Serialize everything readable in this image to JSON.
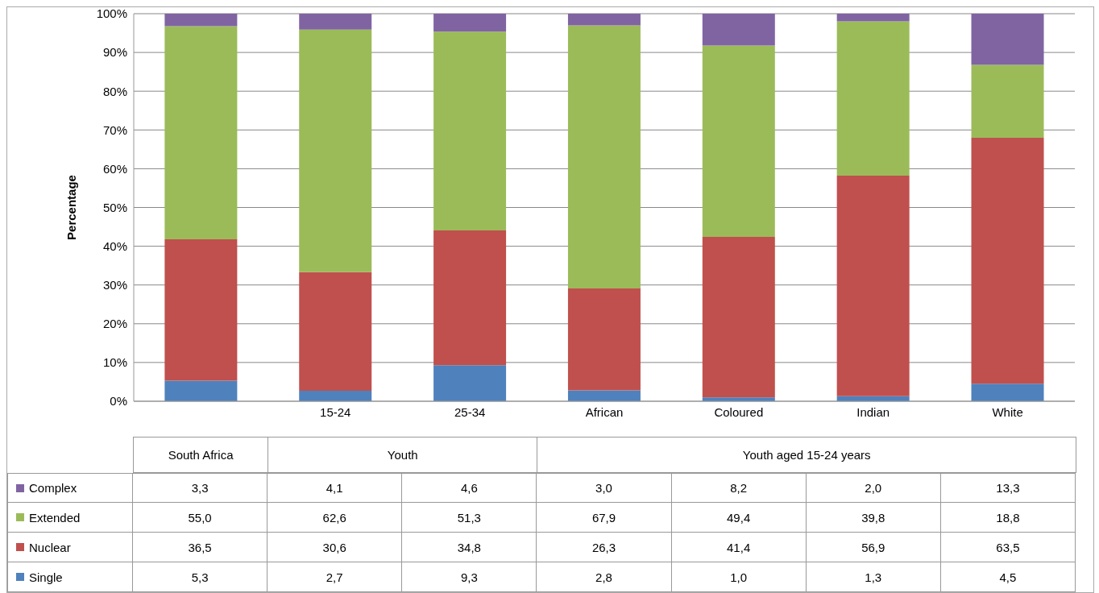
{
  "chart_data": {
    "type": "bar",
    "stacked": true,
    "ylabel": "Percentage",
    "categories": [
      null,
      "15-24",
      "25-34",
      "African",
      "Coloured",
      "Indian",
      "White"
    ],
    "annotations": [
      "South Africa",
      "Youth",
      "Youth aged 15-24 years"
    ],
    "ylim": [
      0,
      100
    ],
    "yticks": [
      {
        "value": 0,
        "label": "0%"
      },
      {
        "value": 10,
        "label": "10%"
      },
      {
        "value": 20,
        "label": "20%"
      },
      {
        "value": 30,
        "label": "30%"
      },
      {
        "value": 40,
        "label": "40%"
      },
      {
        "value": 50,
        "label": "50%"
      },
      {
        "value": 60,
        "label": "60%"
      },
      {
        "value": 70,
        "label": "70%"
      },
      {
        "value": 80,
        "label": "80%"
      },
      {
        "value": 90,
        "label": "90%"
      },
      {
        "value": 100,
        "label": "100%"
      }
    ],
    "grid": "y",
    "legend": "bottom",
    "series": [
      {
        "name": "Single",
        "color": "#4f81bd",
        "values": [
          5.3,
          2.7,
          9.3,
          2.8,
          1.0,
          1.3,
          4.5
        ],
        "value_labels": [
          "5,3",
          "2,7",
          "9,3",
          "2,8",
          "1,0",
          "1,3",
          "4,5"
        ]
      },
      {
        "name": "Nuclear",
        "color": "#c0504d",
        "values": [
          36.5,
          30.6,
          34.8,
          26.3,
          41.4,
          56.9,
          63.5
        ],
        "value_labels": [
          "36,5",
          "30,6",
          "34,8",
          "26,3",
          "41,4",
          "56,9",
          "63,5"
        ]
      },
      {
        "name": "Extended",
        "color": "#9bbb59",
        "values": [
          55.0,
          62.6,
          51.3,
          67.9,
          49.4,
          39.8,
          18.8
        ],
        "value_labels": [
          "55,0",
          "62,6",
          "51,3",
          "67,9",
          "49,4",
          "39,8",
          "18,8"
        ]
      },
      {
        "name": "Complex",
        "color": "#8064a2",
        "values": [
          3.3,
          4.1,
          4.6,
          3.0,
          8.2,
          2.0,
          13.3
        ],
        "value_labels": [
          "3,3",
          "4,1",
          "4,6",
          "3,0",
          "8,2",
          "2,0",
          "13,3"
        ]
      }
    ]
  }
}
